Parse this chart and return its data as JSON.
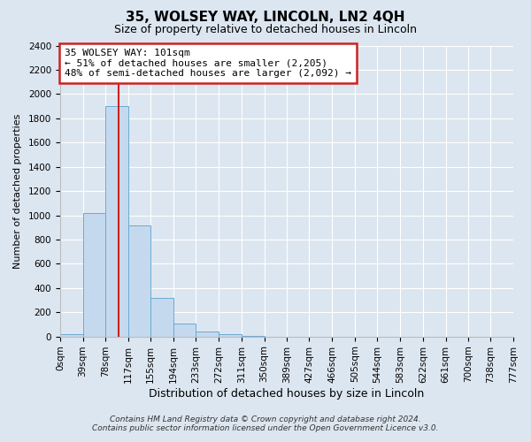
{
  "title": "35, WOLSEY WAY, LINCOLN, LN2 4QH",
  "subtitle": "Size of property relative to detached houses in Lincoln",
  "xlabel": "Distribution of detached houses by size in Lincoln",
  "ylabel": "Number of detached properties",
  "bar_color": "#c5d9ee",
  "bar_edge_color": "#6aaad4",
  "background_color": "#dce6f0",
  "plot_bg_color": "#dce6f0",
  "annotation_box_color": "#ffffff",
  "annotation_border_color": "#cc2222",
  "vline_color": "#cc2222",
  "vline_x": 101,
  "annotation_title": "35 WOLSEY WAY: 101sqm",
  "annotation_line1": "← 51% of detached houses are smaller (2,205)",
  "annotation_line2": "48% of semi-detached houses are larger (2,092) →",
  "footnote1": "Contains HM Land Registry data © Crown copyright and database right 2024.",
  "footnote2": "Contains public sector information licensed under the Open Government Licence v3.0.",
  "bin_edges": [
    0,
    39,
    78,
    117,
    155,
    194,
    233,
    272,
    311,
    350,
    389,
    427,
    466,
    505,
    544,
    583,
    622,
    661,
    700,
    738,
    777
  ],
  "bin_labels": [
    "0sqm",
    "39sqm",
    "78sqm",
    "117sqm",
    "155sqm",
    "194sqm",
    "233sqm",
    "272sqm",
    "311sqm",
    "350sqm",
    "389sqm",
    "427sqm",
    "466sqm",
    "505sqm",
    "544sqm",
    "583sqm",
    "622sqm",
    "661sqm",
    "700sqm",
    "738sqm",
    "777sqm"
  ],
  "bar_heights": [
    20,
    1020,
    1900,
    920,
    320,
    110,
    45,
    20,
    5,
    0,
    0,
    0,
    0,
    0,
    0,
    0,
    0,
    0,
    0,
    0
  ],
  "ylim": [
    0,
    2400
  ],
  "yticks": [
    0,
    200,
    400,
    600,
    800,
    1000,
    1200,
    1400,
    1600,
    1800,
    2000,
    2200,
    2400
  ],
  "grid_color": "#ffffff",
  "title_fontsize": 11,
  "subtitle_fontsize": 9,
  "xlabel_fontsize": 9,
  "ylabel_fontsize": 8,
  "tick_fontsize": 7.5,
  "annot_fontsize": 8,
  "footnote_fontsize": 6.5
}
